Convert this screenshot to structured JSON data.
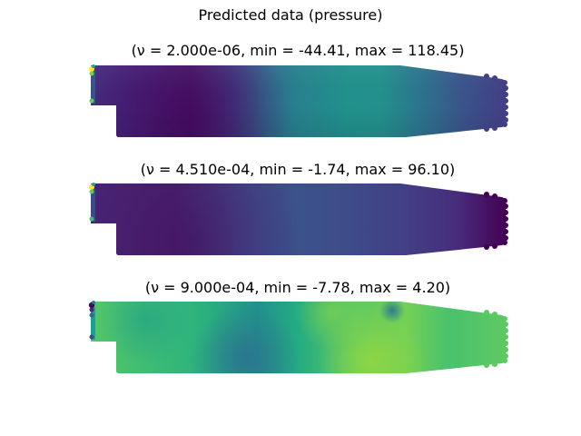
{
  "figure": {
    "title": "Predicted data (pressure)"
  },
  "chart_data": [
    {
      "type": "heatmap",
      "title": "(ν =  2.000e-06, min = -44.41, max = 118.45)",
      "nu": "2.000e-06",
      "min": -44.41,
      "max": 118.45,
      "colormap": "viridis",
      "axes_visible": false,
      "grid": false
    },
    {
      "type": "heatmap",
      "title": "(ν =  4.510e-04, min = -1.74, max = 96.10)",
      "nu": "4.510e-04",
      "min": -1.74,
      "max": 96.1,
      "colormap": "viridis",
      "axes_visible": false,
      "grid": false
    },
    {
      "type": "heatmap",
      "title": "(ν =  9.000e-04, min = -7.78, max = 4.20)",
      "nu": "9.000e-04",
      "min": -7.78,
      "max": 4.2,
      "colormap": "viridis",
      "axes_visible": false,
      "grid": false
    }
  ]
}
